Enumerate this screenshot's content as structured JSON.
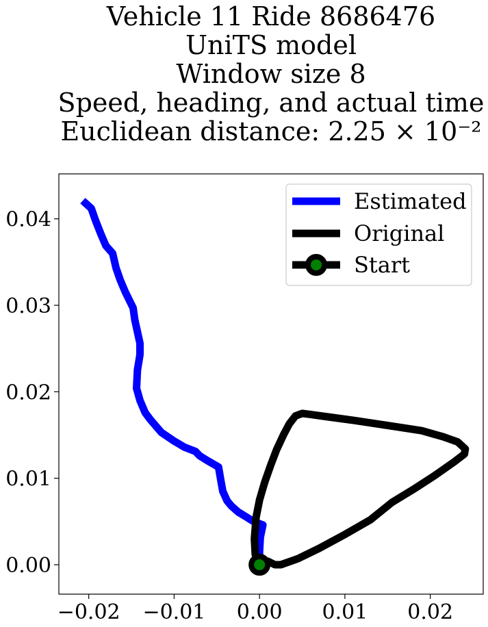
{
  "chart_data": {
    "type": "line",
    "title_lines": [
      "Vehicle 11 Ride 8686476",
      "UniTS model",
      "Window size 8",
      "Speed, heading, and actual time",
      "Euclidean distance: 2.25 × 10⁻²"
    ],
    "xlabel": "",
    "ylabel": "",
    "xlim": [
      -0.0235,
      0.0262
    ],
    "ylim": [
      -0.0034,
      0.0452
    ],
    "xticks": [
      -0.02,
      -0.01,
      0.0,
      0.01,
      0.02
    ],
    "xtick_labels": [
      "−0.02",
      "−0.01",
      "0.00",
      "0.01",
      "0.02"
    ],
    "yticks": [
      0.0,
      0.01,
      0.02,
      0.03,
      0.04
    ],
    "ytick_labels": [
      "0.00",
      "0.01",
      "0.02",
      "0.03",
      "0.04"
    ],
    "grid": false,
    "legend_position": "top-right",
    "series": [
      {
        "name": "Estimated",
        "color": "#0000ff",
        "x": [
          -0.0207,
          -0.0197,
          -0.0192,
          -0.0186,
          -0.018,
          -0.0172,
          -0.0168,
          -0.0163,
          -0.0157,
          -0.0148,
          -0.0146,
          -0.014,
          -0.014,
          -0.0143,
          -0.0144,
          -0.014,
          -0.0134,
          -0.0128,
          -0.0115,
          -0.01,
          -0.0088,
          -0.0075,
          -0.007,
          -0.0062,
          -0.0048,
          -0.0045,
          -0.0043,
          -0.0038,
          -0.0033,
          -0.0025,
          -0.0015,
          -0.0007,
          0.0004,
          0.0001,
          0.0,
          0.0
        ],
        "y": [
          0.0421,
          0.0412,
          0.0398,
          0.0383,
          0.0369,
          0.036,
          0.0343,
          0.0329,
          0.0315,
          0.0297,
          0.0283,
          0.0256,
          0.0243,
          0.0225,
          0.0204,
          0.019,
          0.0176,
          0.0168,
          0.0153,
          0.0143,
          0.0136,
          0.0131,
          0.0126,
          0.0121,
          0.0113,
          0.0096,
          0.0085,
          0.0074,
          0.0068,
          0.0061,
          0.0055,
          0.005,
          0.0046,
          0.0032,
          0.0015,
          0.0
        ]
      },
      {
        "name": "Original",
        "color": "#000000",
        "x": [
          0.0,
          -0.0005,
          -0.0006,
          -0.0004,
          0.0,
          0.0006,
          0.0013,
          0.002,
          0.0028,
          0.0035,
          0.0042,
          0.005,
          0.0058,
          0.008,
          0.011,
          0.015,
          0.019,
          0.0215,
          0.0232,
          0.0241,
          0.024,
          0.0228,
          0.0205,
          0.018,
          0.0155,
          0.013,
          0.01,
          0.007,
          0.0045,
          0.0025,
          0.0018,
          0.001,
          0.0
        ],
        "y": [
          0.0,
          0.0012,
          0.003,
          0.0055,
          0.0075,
          0.0095,
          0.0115,
          0.0133,
          0.015,
          0.0163,
          0.0172,
          0.0175,
          0.0174,
          0.0171,
          0.0167,
          0.0161,
          0.0155,
          0.0148,
          0.0142,
          0.0134,
          0.0128,
          0.0119,
          0.0103,
          0.0087,
          0.0072,
          0.0052,
          0.0035,
          0.0019,
          0.0007,
          0.0,
          0.0,
          0.0004,
          0.0
        ]
      }
    ],
    "start": {
      "name": "Start",
      "x": 0.0,
      "y": 0.0,
      "marker_color": "#008000",
      "ring_color": "#000000"
    },
    "legend_entries": [
      "Estimated",
      "Original",
      "Start"
    ]
  }
}
